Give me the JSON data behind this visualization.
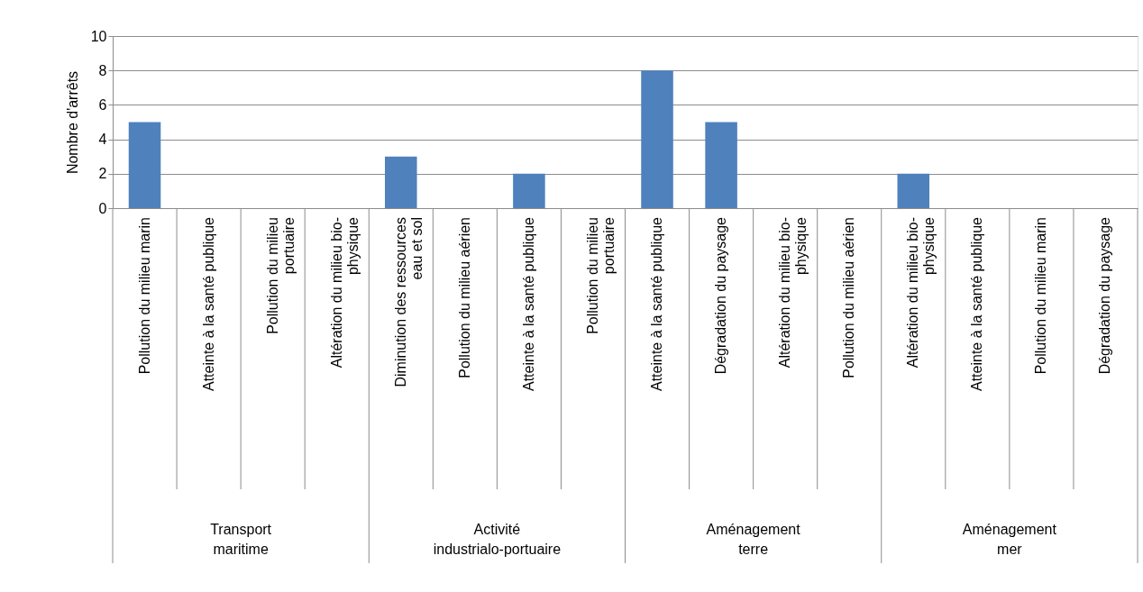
{
  "chart_data": {
    "type": "bar",
    "ylabel": "Nombre d'arrêts",
    "categories": [
      "Pollution du milieu marin",
      "Atteinte à la santé publique",
      "Pollution du milieu portuaire",
      "Altération du milieu bio-physique",
      "Diminution des ressources eau et sol",
      "Pollution du milieu aérien",
      "Atteinte à la santé publique",
      "Pollution du milieu portuaire",
      "Atteinte à la santé publique",
      "Dégradation du paysage",
      "Altération du milieu bio-physique",
      "Pollution du milieu aérien",
      "Altération du milieu bio-physique",
      "Atteinte à la santé publique",
      "Pollution du milieu marin",
      "Dégradation du paysage"
    ],
    "values": [
      5,
      0,
      0,
      0,
      3,
      0,
      2,
      0,
      8,
      5,
      0,
      0,
      2,
      0,
      0,
      0
    ],
    "color": "#4f81bd",
    "ylim": [
      0,
      10
    ],
    "yticks": [
      0,
      2,
      4,
      6,
      8,
      10
    ],
    "grid": "y",
    "annotations": [
      "Transport maritime",
      "Activité industrialo-portuaire",
      "Aménagement terre",
      "Aménagement mer"
    ]
  }
}
